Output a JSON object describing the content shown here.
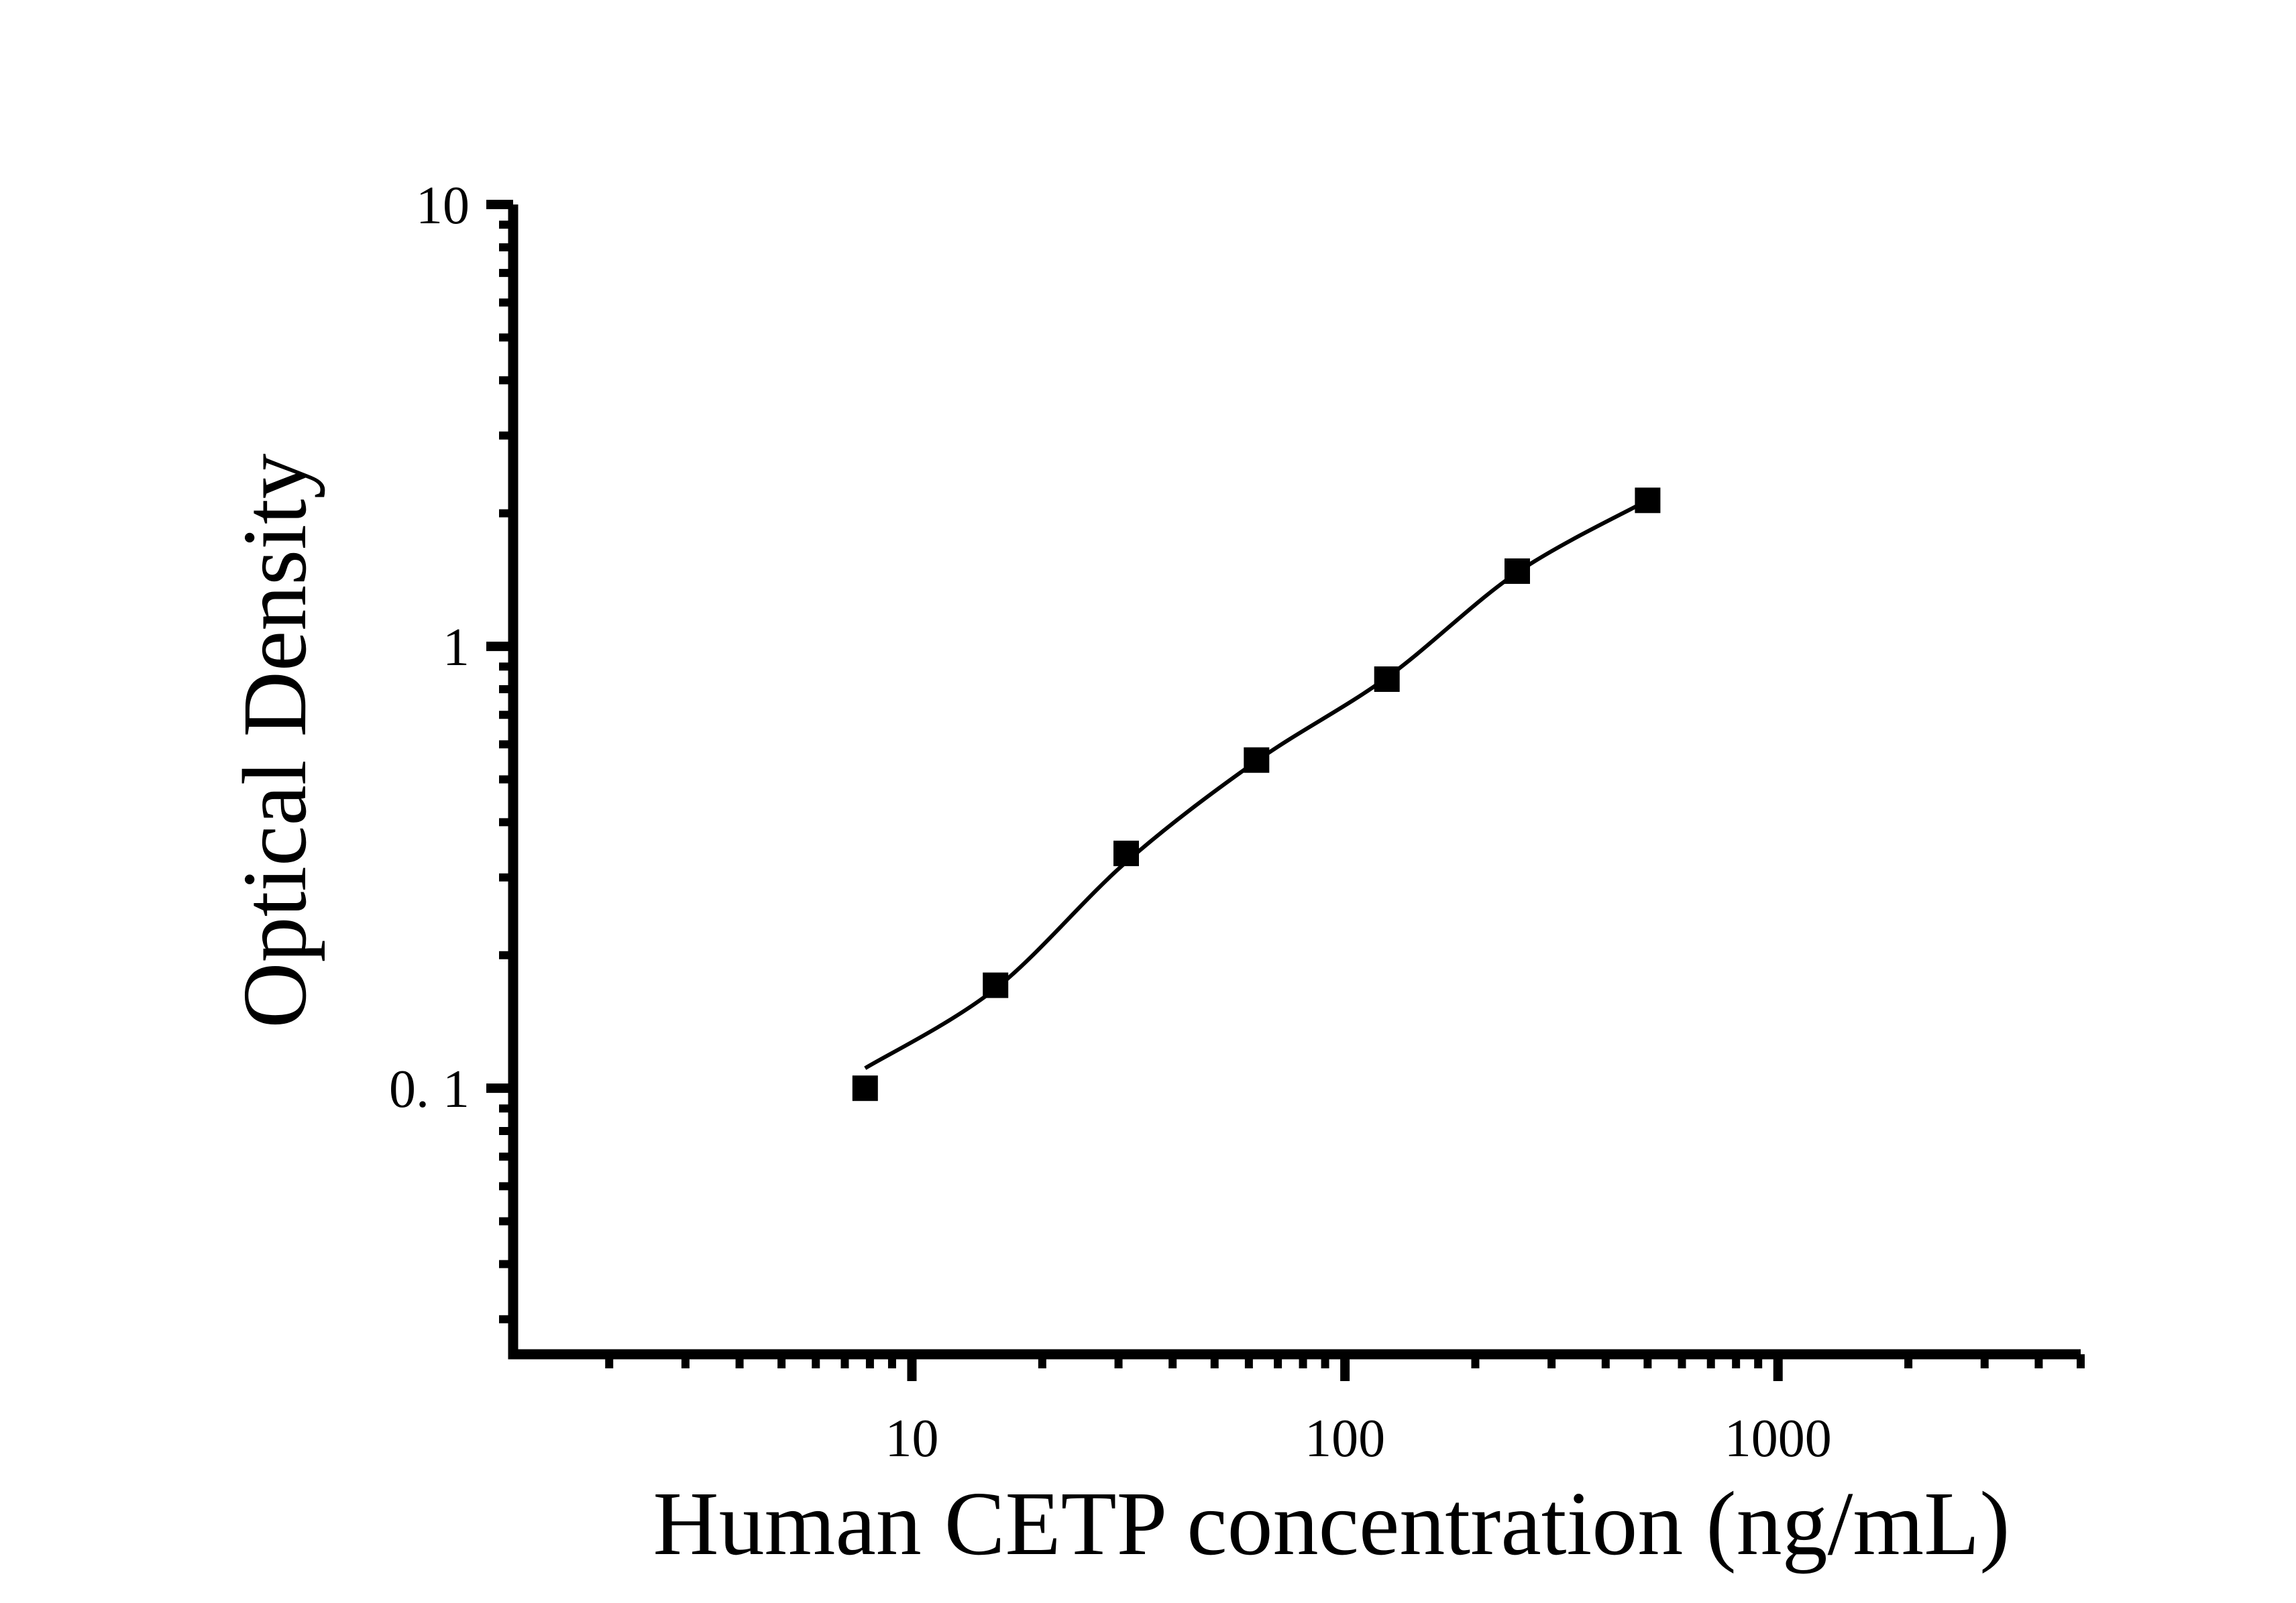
{
  "figure": {
    "background_color": "#ffffff",
    "foreground_color": "#000000"
  },
  "chart_data": {
    "type": "scatter",
    "title": "",
    "xlabel": "Human CETP concentration (ng/mL)",
    "ylabel": "Optical Density",
    "x_scale": "log",
    "y_scale": "log",
    "xlim": [
      1.2,
      5000
    ],
    "ylim": [
      0.025,
      10
    ],
    "grid": false,
    "legend": false,
    "axis_style": "L-shape (left and bottom only), ticks outside",
    "x_major_ticks": [
      {
        "value": 10,
        "label": "10"
      },
      {
        "value": 100,
        "label": "100"
      },
      {
        "value": 1000,
        "label": "1000"
      }
    ],
    "y_major_ticks": [
      {
        "value": 10,
        "label": "10"
      },
      {
        "value": 1,
        "label": "1"
      },
      {
        "value": 0.1,
        "label": "0. 1"
      }
    ],
    "series": [
      {
        "name": "Standard curve data points",
        "marker": "filled-square",
        "marker_color": "#000000",
        "points": [
          {
            "x": 7.8,
            "y": 0.1
          },
          {
            "x": 15.6,
            "y": 0.171
          },
          {
            "x": 31.25,
            "y": 0.34
          },
          {
            "x": 62.5,
            "y": 0.553
          },
          {
            "x": 125,
            "y": 0.843
          },
          {
            "x": 250,
            "y": 1.48
          },
          {
            "x": 500,
            "y": 2.14
          }
        ]
      }
    ],
    "fit_curve": {
      "name": "Fitted standard curve",
      "color": "#000000",
      "anchors": [
        {
          "x": 7.8,
          "y": 0.111
        },
        {
          "x": 15.6,
          "y": 0.168
        },
        {
          "x": 31.25,
          "y": 0.325
        },
        {
          "x": 62.5,
          "y": 0.55
        },
        {
          "x": 125,
          "y": 0.85
        },
        {
          "x": 250,
          "y": 1.47
        },
        {
          "x": 500,
          "y": 2.14
        }
      ]
    }
  }
}
